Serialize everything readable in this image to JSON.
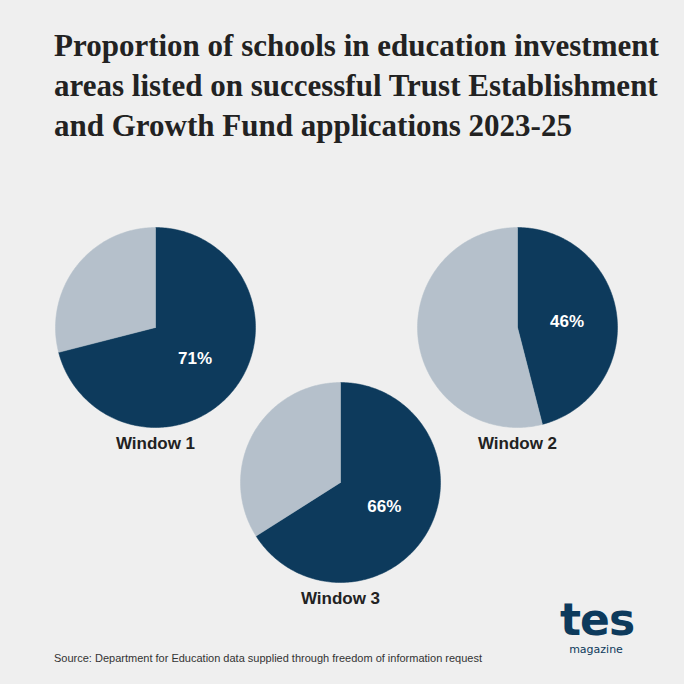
{
  "title": "Proportion of schools in education investment areas listed on successful Trust Establishment and Growth Fund applications 2023-25",
  "source": "Source: Department for Education data supplied through freedom of information request",
  "brand": {
    "name": "tes",
    "sub": "magazine"
  },
  "chart_data": [
    {
      "type": "pie",
      "title": "Window 1",
      "values": [
        71,
        29
      ],
      "value_labels": [
        "71%",
        null
      ],
      "colors": [
        "#0d3a5c",
        "#b5c0cb"
      ],
      "data_labels": true
    },
    {
      "type": "pie",
      "title": "Window 2",
      "values": [
        46,
        54
      ],
      "value_labels": [
        "46%",
        null
      ],
      "colors": [
        "#0d3a5c",
        "#b5c0cb"
      ],
      "data_labels": true
    },
    {
      "type": "pie",
      "title": "Window 3",
      "values": [
        66,
        34
      ],
      "value_labels": [
        "66%",
        null
      ],
      "colors": [
        "#0d3a5c",
        "#b5c0cb"
      ],
      "data_labels": true
    }
  ]
}
